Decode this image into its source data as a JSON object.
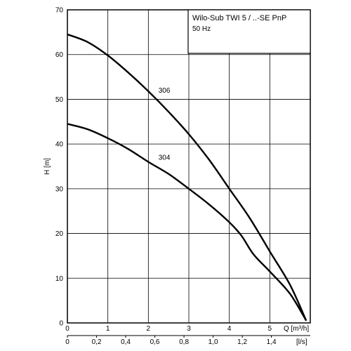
{
  "chart_data": {
    "type": "line",
    "title": "Wilo-Sub TWI 5 / ..-SE PnP",
    "subtitle": "50 Hz",
    "ylabel": "H [m]",
    "xlabel": "Q [m³/h]",
    "x2label": "[l/s]",
    "xlim": [
      0,
      6.0
    ],
    "ylim": [
      0,
      70
    ],
    "x_ticks": [
      "0",
      "1",
      "2",
      "3",
      "4",
      "5"
    ],
    "x2_ticks": [
      "0",
      "0,2",
      "0,4",
      "0,6",
      "0,8",
      "1,0",
      "1,2",
      "1,4"
    ],
    "y_ticks": [
      "0",
      "10",
      "20",
      "30",
      "40",
      "50",
      "60",
      "70"
    ],
    "grid": true,
    "series": [
      {
        "name": "306",
        "x": [
          0,
          0.5,
          1.0,
          1.5,
          2.0,
          2.5,
          3.0,
          3.5,
          4.0,
          4.5,
          5.0,
          5.5,
          5.9
        ],
        "y": [
          64.5,
          62.8,
          59.8,
          56.0,
          51.8,
          47.2,
          42.2,
          36.5,
          30.0,
          23.5,
          16.0,
          8.5,
          0.5
        ]
      },
      {
        "name": "304",
        "x": [
          0,
          0.5,
          1.0,
          1.5,
          2.0,
          2.5,
          3.0,
          3.5,
          4.0,
          4.3,
          4.6,
          5.0,
          5.5,
          5.9
        ],
        "y": [
          44.5,
          43.3,
          41.3,
          38.9,
          36.0,
          33.3,
          30.0,
          26.5,
          22.5,
          19.5,
          15.3,
          11.5,
          6.5,
          0.5
        ]
      }
    ],
    "curve_labels": [
      {
        "text": "306",
        "x": 2.25,
        "y": 51.5
      },
      {
        "text": "304",
        "x": 2.25,
        "y": 36.5
      }
    ]
  }
}
